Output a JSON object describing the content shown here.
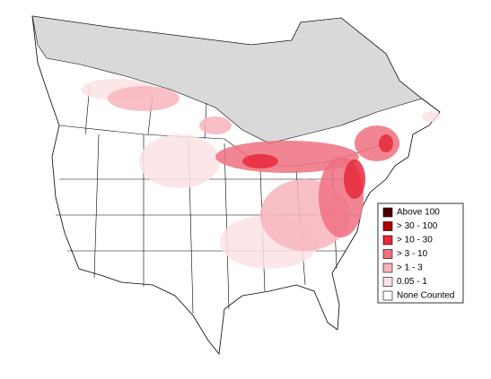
{
  "legend": {
    "items": [
      {
        "label": "Above 100",
        "color": "#4a0000"
      },
      {
        "label": "> 30 - 100",
        "color": "#b00000"
      },
      {
        "label": "> 10 - 30",
        "color": "#e8283a"
      },
      {
        "label": "> 3 - 10",
        "color": "#f07080"
      },
      {
        "label": "> 1 - 3",
        "color": "#f8b4bc"
      },
      {
        "label": "0.05 - 1",
        "color": "#fde2e4"
      },
      {
        "label": "None Counted",
        "color": "#ffffff"
      }
    ]
  }
}
